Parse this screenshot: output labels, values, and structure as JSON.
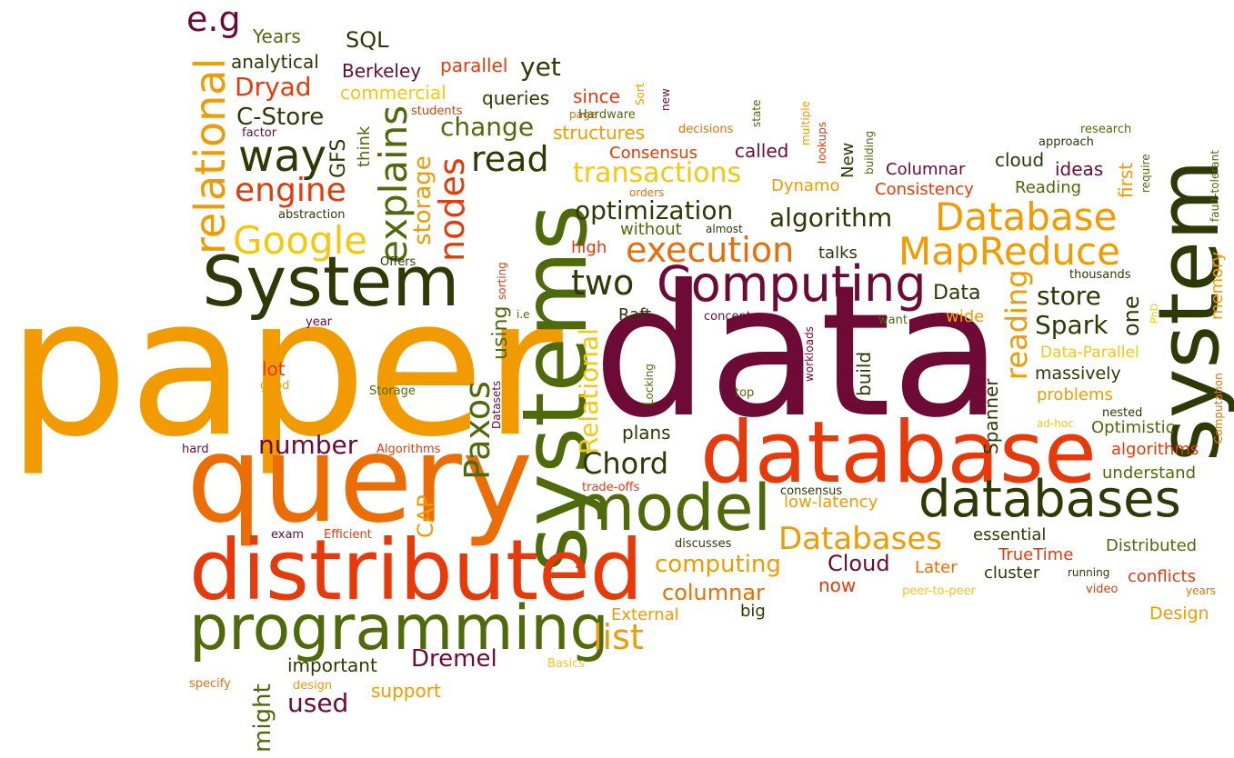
{
  "palette": {
    "maroon": "#6d0a35",
    "dark_green": "#2d3a05",
    "olive": "#4f6a0b",
    "orange": "#f29b00",
    "dark_orange": "#ea6e05",
    "red_orange": "#e63a0a",
    "yellow": "#f4c810"
  },
  "words": [
    "paper",
    "data",
    "system",
    "query",
    "systems",
    "database",
    "distributed",
    "System",
    "programming",
    "model",
    "databases",
    "Computing",
    "MapReduce",
    "Database",
    "relational",
    "execution",
    "Google",
    "way",
    "engine",
    "explains",
    "nodes",
    "read",
    "Paxos",
    "transactions",
    "optimization",
    "two",
    "Databases",
    "Relational",
    "change",
    "C-Store",
    "Dryad",
    "storage",
    "algorithm",
    "Chord",
    "number",
    "reading",
    "Spark",
    "store",
    "e.g",
    "SQL",
    "Years",
    "analytical",
    "Berkeley",
    "parallel",
    "yet",
    "commercial",
    "queries",
    "since",
    "GFS",
    "think",
    "structures",
    "Consensus",
    "called",
    "Dynamo",
    "Columnar",
    "cloud",
    "ideas",
    "Consistency",
    "Reading",
    "first",
    "New",
    "without",
    "talks",
    "Data",
    "one",
    "wide",
    "Raft",
    "concept",
    "want",
    "Data-Parallel",
    "massively",
    "problems",
    "Optimistic",
    "algorithms",
    "understand",
    "Cloud",
    "computing",
    "columnar",
    "now",
    "Later",
    "cluster",
    "conflicts",
    "TrueTime",
    "Distributed",
    "essential",
    "list",
    "Dremel",
    "important",
    "used",
    "support",
    "might",
    "External",
    "big",
    "Design",
    "CAP",
    "using",
    "Spanner",
    "build",
    "plans",
    "low-latency",
    "memory",
    "lot",
    "good",
    "Storage",
    "hard",
    "Algorithms",
    "exam",
    "Efficient",
    "specify",
    "design",
    "Basics",
    "trade-offs",
    "consensus",
    "discusses",
    "peer-to-peer",
    "video",
    "running",
    "years",
    "ad-hoc",
    "nested",
    "Computation",
    "thousands",
    "PhD",
    "fault-tolerant",
    "require",
    "research",
    "approach",
    "building",
    "state",
    "multiple",
    "lookups",
    "decisions",
    "Sort",
    "page",
    "new",
    "Hardware",
    "students",
    "factor",
    "abstraction",
    "Offers",
    "year",
    "i.e",
    "sorting",
    "Datasets",
    "Locking",
    "top",
    "workloads",
    "high",
    "orders",
    "almost"
  ]
}
